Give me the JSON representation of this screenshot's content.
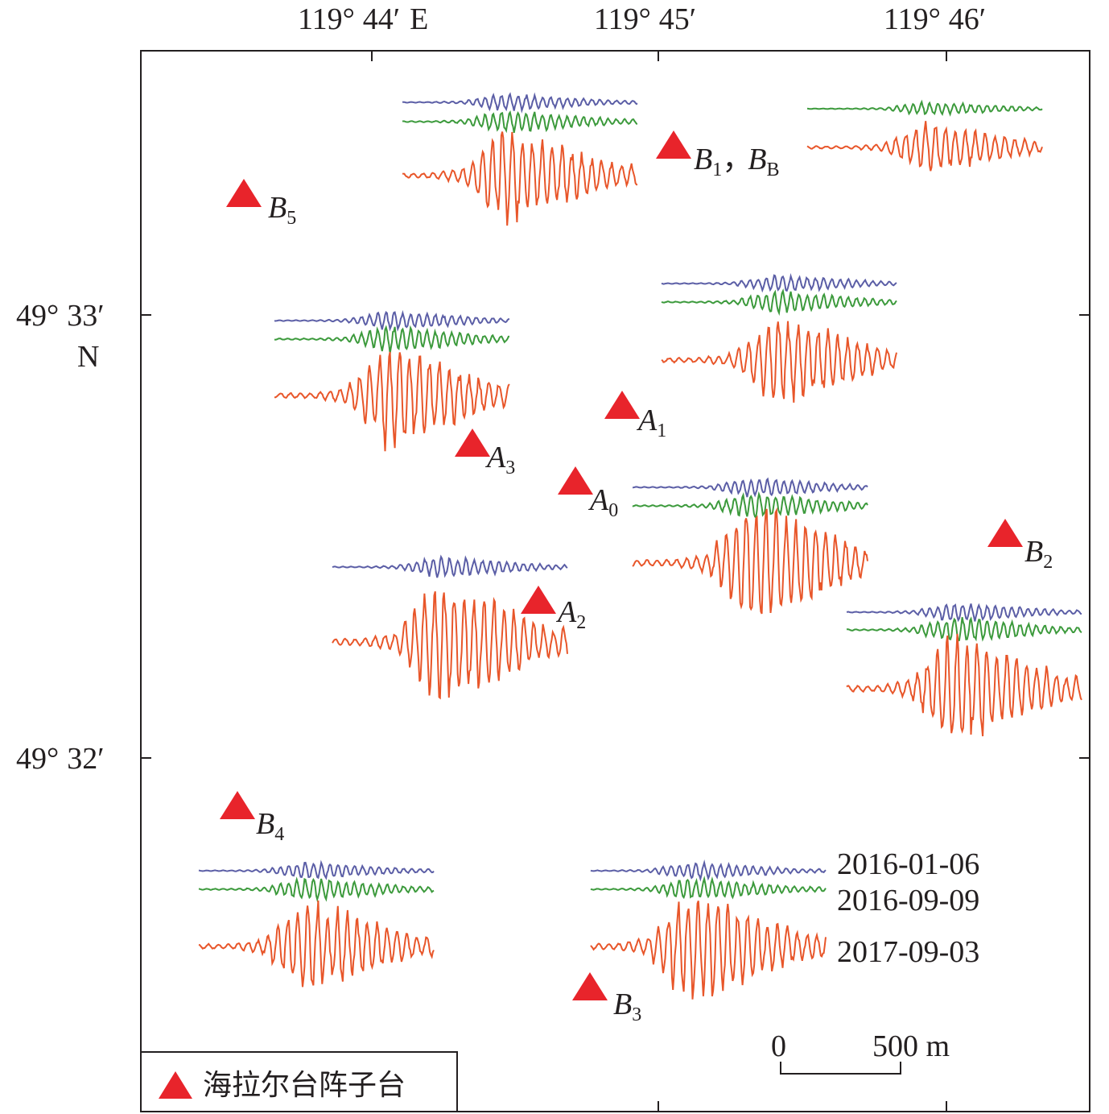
{
  "axes": {
    "lon_ticks": [
      {
        "deg": "119°",
        "min": "44′",
        "hem": "E"
      },
      {
        "deg": "119°",
        "min": "45′",
        "hem": ""
      },
      {
        "deg": "119°",
        "min": "46′",
        "hem": ""
      }
    ],
    "lat_ticks": [
      {
        "deg": "49°",
        "min": "33′",
        "hem": "N"
      },
      {
        "deg": "49°",
        "min": "32′",
        "hem": ""
      }
    ]
  },
  "stations": [
    {
      "id": "B1",
      "letter": "B",
      "sub": "1",
      "extra_letter": "B",
      "extra_sub": "B",
      "separator": "，"
    },
    {
      "id": "B5",
      "letter": "B",
      "sub": "5"
    },
    {
      "id": "A1",
      "letter": "A",
      "sub": "1"
    },
    {
      "id": "A3",
      "letter": "A",
      "sub": "3"
    },
    {
      "id": "A0",
      "letter": "A",
      "sub": "0"
    },
    {
      "id": "A2",
      "letter": "A",
      "sub": "2"
    },
    {
      "id": "B2",
      "letter": "B",
      "sub": "2"
    },
    {
      "id": "B4",
      "letter": "B",
      "sub": "4"
    },
    {
      "id": "B3",
      "letter": "B",
      "sub": "3"
    }
  ],
  "trace_legend": [
    {
      "date": "2016-01-06",
      "color": "#5b5ea6"
    },
    {
      "date": "2016-09-09",
      "color": "#3c9a3c"
    },
    {
      "date": "2017-09-03",
      "color": "#e8562a"
    }
  ],
  "scale_bar": {
    "start": "0",
    "end": "500 m"
  },
  "legend": {
    "label": "海拉尔台阵子台",
    "marker_color": "#e8242b"
  }
}
